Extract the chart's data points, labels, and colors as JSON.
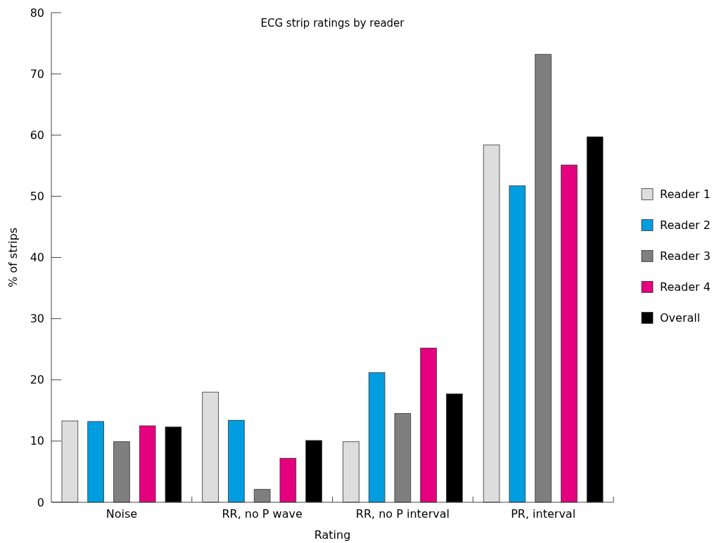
{
  "chart_data": {
    "type": "bar",
    "title": "ECG strip ratings by reader",
    "xlabel": "Rating",
    "ylabel": "% of strips",
    "categories": [
      "Noise",
      "RR, no P wave",
      "RR, no P interval",
      "PR, interval"
    ],
    "series": [
      {
        "name": "Reader 1",
        "color": "#dcdddc",
        "values": [
          13.3,
          18.0,
          9.9,
          58.4
        ]
      },
      {
        "name": "Reader 2",
        "color": "#009ee0",
        "values": [
          13.2,
          13.4,
          21.2,
          51.7
        ]
      },
      {
        "name": "Reader 3",
        "color": "#7f7f7f",
        "values": [
          9.9,
          2.1,
          14.5,
          73.2
        ]
      },
      {
        "name": "Reader 4",
        "color": "#e4007f",
        "values": [
          12.5,
          7.2,
          25.2,
          55.1
        ]
      },
      {
        "name": "Overall",
        "color": "#000000",
        "values": [
          12.3,
          10.1,
          17.7,
          59.7
        ]
      }
    ],
    "ylim": [
      0,
      80
    ],
    "yticks": [
      0,
      10,
      20,
      30,
      40,
      50,
      60,
      70,
      80
    ],
    "grid": false,
    "legend": "right"
  }
}
